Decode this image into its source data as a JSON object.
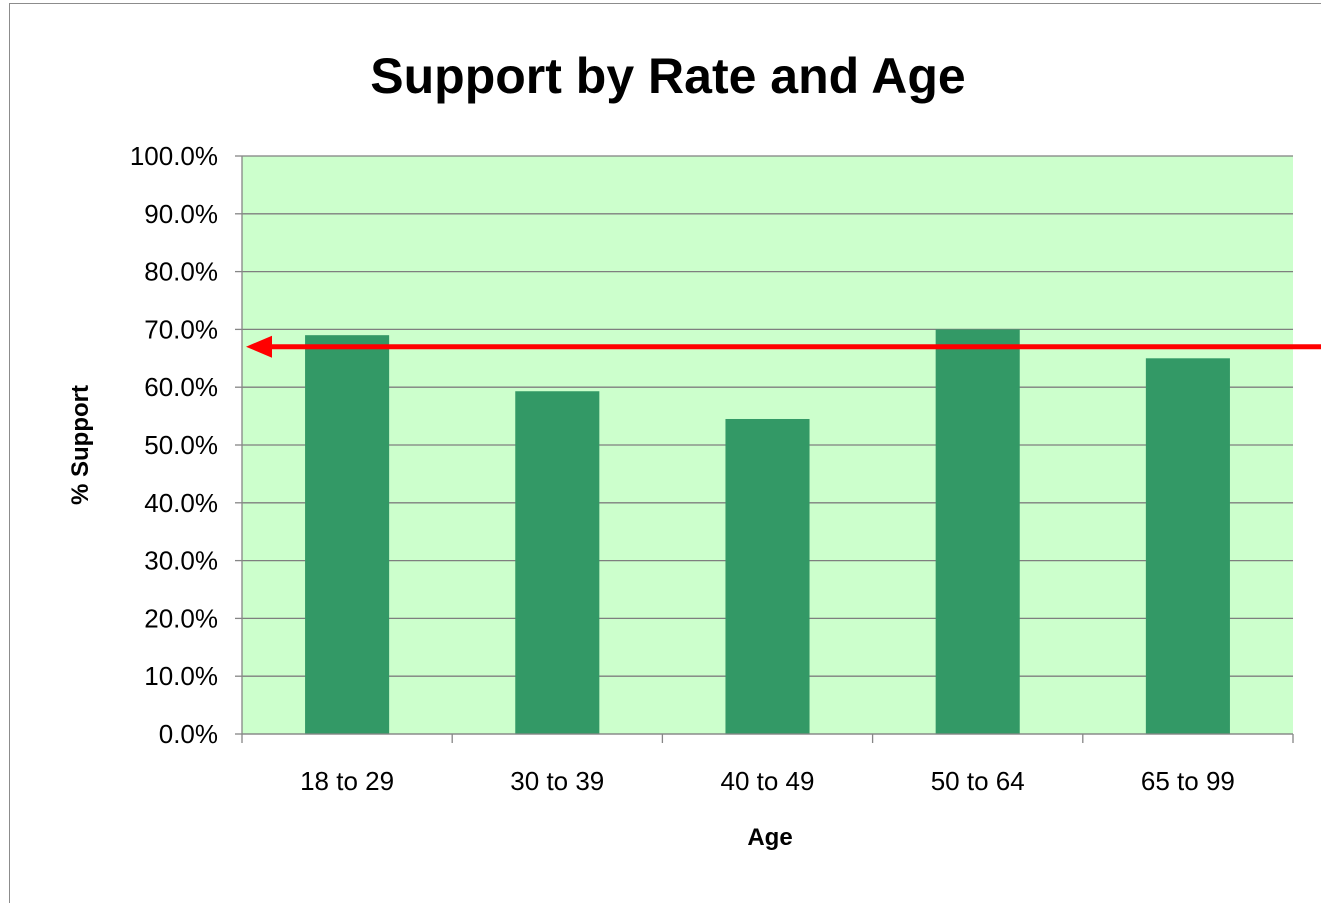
{
  "chart_data": {
    "type": "bar",
    "title": "Support by Rate and Age",
    "xlabel": "Age",
    "ylabel": "% Support",
    "categories": [
      "18 to 29",
      "30 to 39",
      "40 to 49",
      "50 to 64",
      "65 to 99"
    ],
    "values": [
      69.0,
      59.3,
      54.5,
      70.0,
      65.0
    ],
    "ylim": [
      0,
      100
    ],
    "yticks": [
      "0.0%",
      "10.0%",
      "20.0%",
      "30.0%",
      "40.0%",
      "50.0%",
      "60.0%",
      "70.0%",
      "80.0%",
      "90.0%",
      "100.0%"
    ],
    "grid": true,
    "legend": "none",
    "annotations": [
      {
        "type": "arrow",
        "y": 67.0,
        "direction": "left",
        "color": "#ff0000"
      }
    ],
    "colors": {
      "bar": "#339966",
      "plot_background": "#ccffcc",
      "gridline": "#7f7f7f",
      "arrow": "#ff0000"
    }
  }
}
